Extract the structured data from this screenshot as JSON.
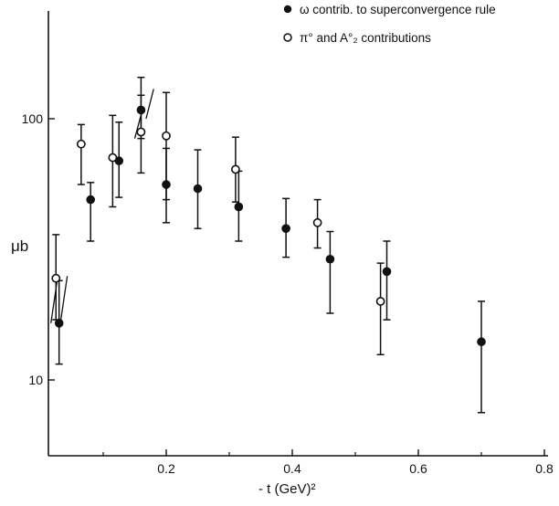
{
  "chart_data": {
    "type": "scatter",
    "title": "",
    "xlabel": "- t (GeV)²",
    "ylabel": "μb",
    "xlim": [
      0,
      0.83
    ],
    "ylim": [
      5,
      400
    ],
    "y_scale": "log",
    "x_ticks": [
      0.2,
      0.4,
      0.6,
      0.8
    ],
    "x_tick_labels": [
      "0.2",
      "0.4",
      "0.6",
      "0.8"
    ],
    "y_ticks": [
      10,
      100
    ],
    "y_tick_labels": [
      "10",
      "100"
    ],
    "grid": false,
    "legend_position": "top-right",
    "series": [
      {
        "name": "ω contrib. to superconvergence rule",
        "marker": "filled-circle",
        "points": [
          {
            "x": 0.03,
            "y": 16.5,
            "lo": 11.5,
            "hi": 24
          },
          {
            "x": 0.08,
            "y": 49,
            "lo": 34,
            "hi": 57
          },
          {
            "x": 0.125,
            "y": 69,
            "lo": 50,
            "hi": 97
          },
          {
            "x": 0.16,
            "y": 108,
            "lo": 84,
            "hi": 144
          },
          {
            "x": 0.2,
            "y": 56,
            "lo": 40,
            "hi": 77
          },
          {
            "x": 0.25,
            "y": 54,
            "lo": 38,
            "hi": 76
          },
          {
            "x": 0.315,
            "y": 46,
            "lo": 34,
            "hi": 63
          },
          {
            "x": 0.39,
            "y": 38,
            "lo": 29.5,
            "hi": 49.5
          },
          {
            "x": 0.46,
            "y": 29,
            "lo": 18,
            "hi": 37
          },
          {
            "x": 0.55,
            "y": 26,
            "lo": 17,
            "hi": 34
          },
          {
            "x": 0.7,
            "y": 14,
            "lo": 7.5,
            "hi": 20
          }
        ]
      },
      {
        "name": "π° and A°₂ contributions",
        "marker": "open-circle",
        "points": [
          {
            "x": 0.025,
            "y": 24.5,
            "lo": 17,
            "hi": 36
          },
          {
            "x": 0.065,
            "y": 80,
            "lo": 56,
            "hi": 95
          },
          {
            "x": 0.115,
            "y": 71,
            "lo": 46,
            "hi": 103
          },
          {
            "x": 0.16,
            "y": 89,
            "lo": 62,
            "hi": 123
          },
          {
            "x": 0.2,
            "y": 86,
            "lo": 49,
            "hi": 126
          },
          {
            "x": 0.31,
            "y": 64,
            "lo": 48,
            "hi": 85
          },
          {
            "x": 0.44,
            "y": 40,
            "lo": 32,
            "hi": 49
          },
          {
            "x": 0.54,
            "y": 20,
            "lo": 12.5,
            "hi": 28
          }
        ]
      }
    ],
    "tie_lines": [
      {
        "x1": 0.017,
        "y1": 16.5,
        "x2": 0.028,
        "y2": 25
      },
      {
        "x1": 0.032,
        "y1": 16.5,
        "x2": 0.043,
        "y2": 25
      },
      {
        "x1": 0.15,
        "y1": 84,
        "x2": 0.163,
        "y2": 110
      },
      {
        "x1": 0.168,
        "y1": 100,
        "x2": 0.18,
        "y2": 130
      }
    ]
  }
}
